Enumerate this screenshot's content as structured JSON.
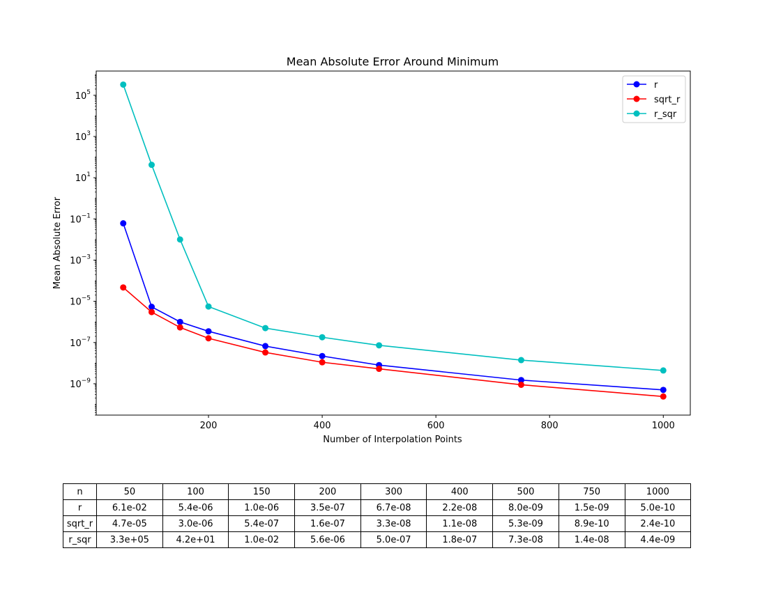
{
  "chart_data": {
    "type": "line",
    "title": "Mean Absolute Error Around Minimum",
    "xlabel": "Number of Interpolation Points",
    "ylabel": "Mean Absolute Error",
    "x": [
      50,
      100,
      150,
      200,
      300,
      400,
      500,
      750,
      1000
    ],
    "xlim": [
      2.5,
      1047.5
    ],
    "x_ticks": [
      200,
      400,
      600,
      800,
      1000
    ],
    "x_tick_labels": [
      "200",
      "400",
      "600",
      "800",
      "1000"
    ],
    "yscale": "log",
    "ylim": [
      3e-11,
      1500000.0
    ],
    "y_ticks": [
      1e-09,
      1e-07,
      1e-05,
      0.001,
      0.1,
      10,
      1000,
      100000
    ],
    "y_tick_labels": [
      {
        "base": "10",
        "exp": "−9"
      },
      {
        "base": "10",
        "exp": "−7"
      },
      {
        "base": "10",
        "exp": "−5"
      },
      {
        "base": "10",
        "exp": "−3"
      },
      {
        "base": "10",
        "exp": "−1"
      },
      {
        "base": "10",
        "exp": "1"
      },
      {
        "base": "10",
        "exp": "3"
      },
      {
        "base": "10",
        "exp": "5"
      }
    ],
    "grid": false,
    "legend": "top-right",
    "series": [
      {
        "name": "r",
        "color": "#0000ff",
        "values": [
          0.061,
          5.4e-06,
          1e-06,
          3.5e-07,
          6.7e-08,
          2.2e-08,
          8e-09,
          1.5e-09,
          5e-10
        ]
      },
      {
        "name": "sqrt_r",
        "color": "#ff0000",
        "values": [
          4.7e-05,
          3e-06,
          5.4e-07,
          1.6e-07,
          3.3e-08,
          1.1e-08,
          5.3e-09,
          8.9e-10,
          2.4e-10
        ]
      },
      {
        "name": "r_sqr",
        "color": "#00bfbf",
        "values": [
          330000.0,
          42.0,
          0.01,
          5.6e-06,
          5e-07,
          1.8e-07,
          7.3e-08,
          1.4e-08,
          4.4e-09
        ]
      }
    ]
  },
  "table": {
    "header": [
      "n",
      "50",
      "100",
      "150",
      "200",
      "300",
      "400",
      "500",
      "750",
      "1000"
    ],
    "rows": [
      [
        "r",
        "6.1e-02",
        "5.4e-06",
        "1.0e-06",
        "3.5e-07",
        "6.7e-08",
        "2.2e-08",
        "8.0e-09",
        "1.5e-09",
        "5.0e-10"
      ],
      [
        "sqrt_r",
        "4.7e-05",
        "3.0e-06",
        "5.4e-07",
        "1.6e-07",
        "3.3e-08",
        "1.1e-08",
        "5.3e-09",
        "8.9e-10",
        "2.4e-10"
      ],
      [
        "r_sqr",
        "3.3e+05",
        "4.2e+01",
        "1.0e-02",
        "5.6e-06",
        "5.0e-07",
        "1.8e-07",
        "7.3e-08",
        "1.4e-08",
        "4.4e-09"
      ]
    ]
  }
}
